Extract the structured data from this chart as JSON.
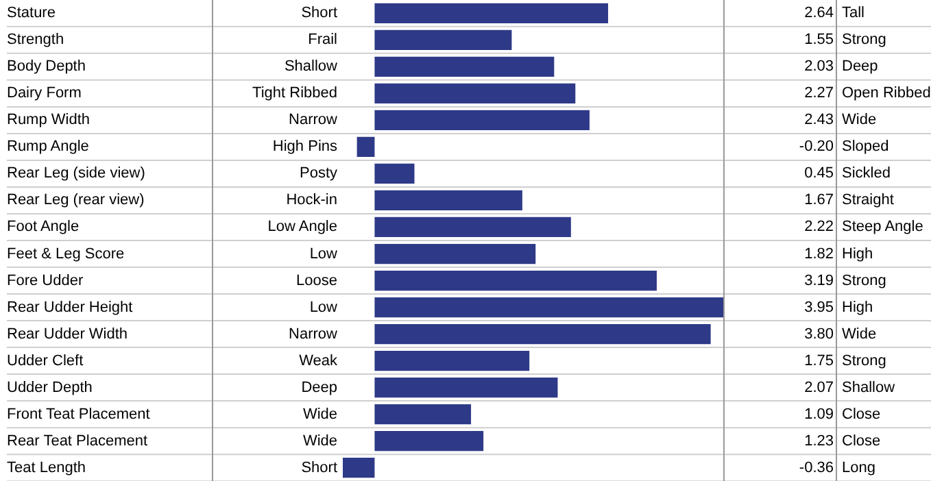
{
  "chart_data": {
    "type": "bar",
    "orientation": "horizontal",
    "color": "#2e3a87",
    "categories": [
      "Stature",
      "Strength",
      "Body Depth",
      "Dairy Form",
      "Rump Width",
      "Rump Angle",
      "Rear Leg (side view)",
      "Rear Leg (rear view)",
      "Foot Angle",
      "Feet & Leg Score",
      "Fore Udder",
      "Rear Udder Height",
      "Rear Udder Width",
      "Udder Cleft",
      "Udder Depth",
      "Front Teat Placement",
      "Rear Teat Placement",
      "Teat Length"
    ],
    "values": [
      2.64,
      1.55,
      2.03,
      2.27,
      2.43,
      -0.2,
      0.45,
      1.67,
      2.22,
      1.82,
      3.19,
      3.95,
      3.8,
      1.75,
      2.07,
      1.09,
      1.23,
      -0.36
    ],
    "value_labels": [
      "2.64",
      "1.55",
      "2.03",
      "2.27",
      "2.43",
      "-0.20",
      "0.45",
      "1.67",
      "2.22",
      "1.82",
      "3.19",
      "3.95",
      "3.80",
      "1.75",
      "2.07",
      "1.09",
      "1.23",
      "-0.36"
    ],
    "annotations": [
      "Short",
      "Frail",
      "Shallow",
      "Tight Ribbed",
      "Narrow",
      "High Pins",
      "Posty",
      "Hock-in",
      "Low Angle",
      "Low",
      "Loose",
      "Low",
      "Narrow",
      "Weak",
      "Deep",
      "Wide",
      "Wide",
      "Short",
      "Tall",
      "Strong",
      "Deep",
      "Open Ribbed",
      "Wide",
      "Sloped",
      "Sickled",
      "Straight",
      "Steep Angle",
      "High",
      "Strong",
      "High",
      "Wide",
      "Strong",
      "Shallow",
      "Close",
      "Close",
      "Long"
    ]
  }
}
